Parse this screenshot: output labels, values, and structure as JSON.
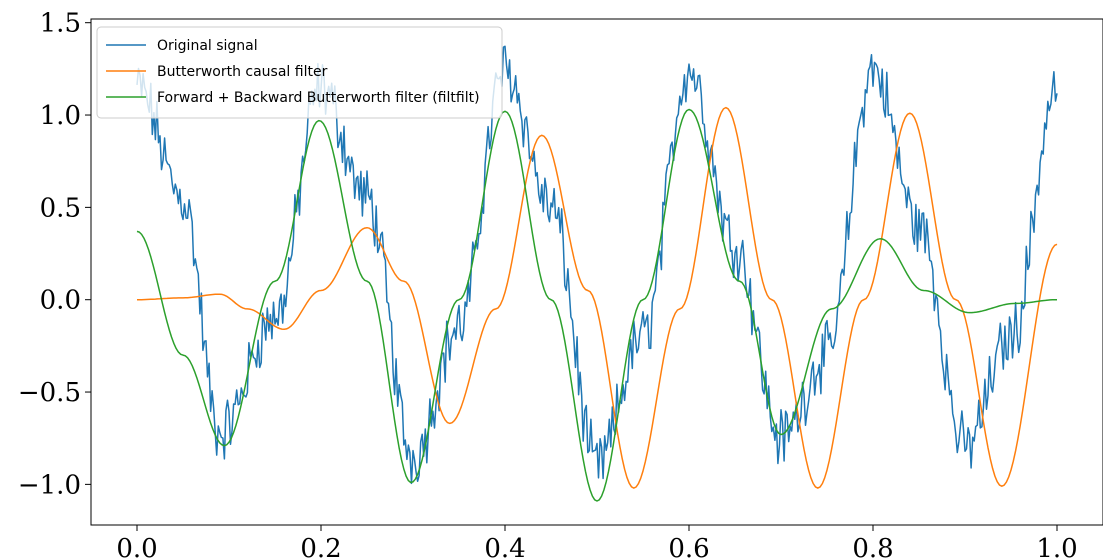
{
  "chart_data": {
    "type": "line",
    "title": "",
    "xlabel": "",
    "ylabel": "",
    "xlim": [
      -0.05,
      1.05
    ],
    "ylim": [
      -1.22,
      1.52
    ],
    "xticks": [
      0.0,
      0.2,
      0.4,
      0.6,
      0.8,
      1.0
    ],
    "xtick_labels": [
      "0.0",
      "0.2",
      "0.4",
      "0.6",
      "0.8",
      "1.0"
    ],
    "yticks": [
      -1.0,
      -0.5,
      0.0,
      0.5,
      1.0,
      1.5
    ],
    "ytick_labels": [
      "−1.0",
      "−0.5",
      "0.0",
      "0.5",
      "1.0",
      "1.5"
    ],
    "grid": false,
    "legend_position": "top-left",
    "series": [
      {
        "name": "Original signal",
        "color": "#1f77b4",
        "style": "noisy",
        "x": [
          0.0,
          0.05,
          0.09,
          0.15,
          0.2,
          0.25,
          0.3,
          0.35,
          0.4,
          0.45,
          0.5,
          0.55,
          0.6,
          0.65,
          0.7,
          0.75,
          0.8,
          0.85,
          0.9,
          0.95,
          1.0
        ],
        "y": [
          1.15,
          0.55,
          -0.72,
          -0.1,
          1.15,
          0.55,
          -0.85,
          -0.15,
          1.25,
          0.5,
          -0.9,
          -0.2,
          1.25,
          0.3,
          -0.75,
          -0.3,
          1.25,
          0.4,
          -0.8,
          -0.2,
          1.15
        ]
      },
      {
        "name": "Butterworth causal filter",
        "color": "#ff7f0e",
        "style": "smooth",
        "x": [
          0.0,
          0.05,
          0.09,
          0.12,
          0.16,
          0.2,
          0.25,
          0.29,
          0.34,
          0.39,
          0.44,
          0.49,
          0.54,
          0.59,
          0.64,
          0.69,
          0.74,
          0.79,
          0.84,
          0.89,
          0.94,
          1.0
        ],
        "y": [
          0.0,
          0.01,
          0.03,
          -0.05,
          -0.16,
          0.05,
          0.39,
          0.1,
          -0.67,
          -0.05,
          0.89,
          0.05,
          -1.02,
          -0.05,
          1.04,
          0.0,
          -1.02,
          0.0,
          1.01,
          0.0,
          -1.01,
          0.3
        ]
      },
      {
        "name": "Forward + Backward Butterworth filter (filtfilt)",
        "color": "#2ca02c",
        "style": "smooth",
        "x": [
          0.0,
          0.05,
          0.095,
          0.15,
          0.198,
          0.25,
          0.298,
          0.35,
          0.4,
          0.45,
          0.5,
          0.55,
          0.6,
          0.655,
          0.7,
          0.755,
          0.808,
          0.855,
          0.905,
          0.955,
          1.0
        ],
        "y": [
          0.37,
          -0.3,
          -0.79,
          0.1,
          0.97,
          0.1,
          -0.99,
          0.0,
          1.02,
          0.0,
          -1.09,
          0.0,
          1.03,
          0.1,
          -0.73,
          -0.05,
          0.33,
          0.05,
          -0.07,
          -0.02,
          0.0
        ]
      }
    ]
  }
}
